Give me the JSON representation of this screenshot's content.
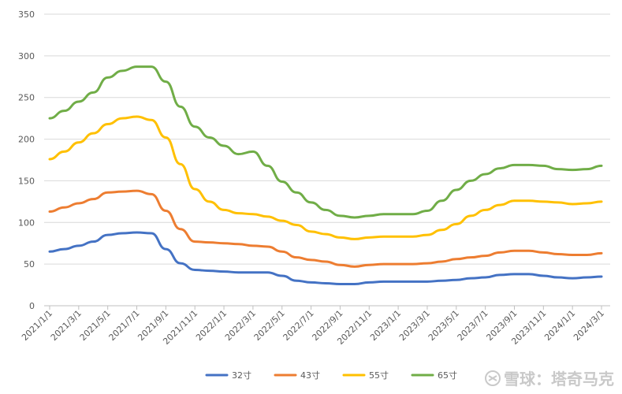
{
  "chart_data": {
    "type": "line",
    "title": "",
    "xlabel": "",
    "ylabel": "",
    "ylim": [
      0,
      350
    ],
    "yticks": [
      0,
      50,
      100,
      150,
      200,
      250,
      300,
      350
    ],
    "grid": true,
    "legend_position": "bottom",
    "x": [
      "2021/1/1",
      "2021/2/1",
      "2021/3/1",
      "2021/4/1",
      "2021/5/1",
      "2021/6/1",
      "2021/7/1",
      "2021/8/1",
      "2021/9/1",
      "2021/10/1",
      "2021/11/1",
      "2021/12/1",
      "2022/1/1",
      "2022/2/1",
      "2022/3/1",
      "2022/4/1",
      "2022/5/1",
      "2022/6/1",
      "2022/7/1",
      "2022/8/1",
      "2022/9/1",
      "2022/10/1",
      "2022/11/1",
      "2022/12/1",
      "2023/1/1",
      "2023/2/1",
      "2023/3/1",
      "2023/4/1",
      "2023/5/1",
      "2023/6/1",
      "2023/7/1",
      "2023/8/1",
      "2023/9/1",
      "2023/10/1",
      "2023/11/1",
      "2023/12/1",
      "2024/1/1",
      "2024/2/1",
      "2024/3/1"
    ],
    "x_tick_labels": [
      "2021/1/1",
      "2021/3/1",
      "2021/5/1",
      "2021/7/1",
      "2021/9/1",
      "2021/11/1",
      "2022/1/1",
      "2022/3/1",
      "2022/5/1",
      "2022/7/1",
      "2022/9/1",
      "2022/11/1",
      "2023/1/1",
      "2023/3/1",
      "2023/5/1",
      "2023/7/1",
      "2023/9/1",
      "2023/11/1",
      "2024/1/1",
      "2024/3/1"
    ],
    "series": [
      {
        "name": "32寸",
        "color": "#4472C4",
        "values": [
          65,
          68,
          72,
          77,
          85,
          87,
          88,
          87,
          68,
          51,
          43,
          42,
          41,
          40,
          40,
          40,
          36,
          30,
          28,
          27,
          26,
          26,
          28,
          29,
          29,
          29,
          29,
          30,
          31,
          33,
          34,
          37,
          38,
          38,
          36,
          34,
          33,
          34,
          35
        ]
      },
      {
        "name": "43寸",
        "color": "#ED7D31",
        "values": [
          113,
          118,
          123,
          128,
          136,
          137,
          138,
          134,
          114,
          92,
          77,
          76,
          75,
          74,
          72,
          71,
          65,
          58,
          55,
          53,
          49,
          47,
          49,
          50,
          50,
          50,
          51,
          53,
          56,
          58,
          60,
          64,
          66,
          66,
          64,
          62,
          61,
          61,
          63
        ]
      },
      {
        "name": "55寸",
        "color": "#FFC000",
        "values": [
          176,
          185,
          196,
          207,
          218,
          225,
          227,
          223,
          202,
          170,
          140,
          125,
          115,
          111,
          110,
          107,
          102,
          97,
          89,
          86,
          82,
          80,
          82,
          83,
          83,
          83,
          85,
          91,
          98,
          108,
          115,
          121,
          126,
          126,
          125,
          124,
          122,
          123,
          125
        ]
      },
      {
        "name": "65寸",
        "color": "#70AD47",
        "values": [
          225,
          234,
          245,
          256,
          274,
          282,
          287,
          287,
          269,
          239,
          215,
          202,
          192,
          182,
          185,
          168,
          149,
          136,
          124,
          115,
          108,
          106,
          108,
          110,
          110,
          110,
          114,
          126,
          139,
          150,
          158,
          165,
          169,
          169,
          168,
          164,
          163,
          164,
          168
        ]
      }
    ]
  },
  "watermark": {
    "text": "雪球：塔奇马克",
    "logo_icon": "snowball-logo-icon"
  }
}
